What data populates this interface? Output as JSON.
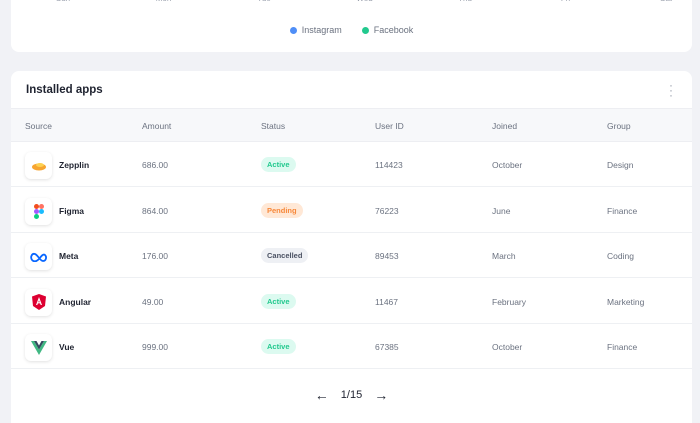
{
  "chart": {
    "days": [
      "Sun",
      "Mon",
      "Tue",
      "Wed",
      "Thu",
      "Fri",
      "Sat"
    ],
    "legend": [
      {
        "label": "Instagram",
        "color": "#4f8ef7"
      },
      {
        "label": "Facebook",
        "color": "#22c98e"
      }
    ]
  },
  "table": {
    "title": "Installed apps",
    "columns": [
      "Source",
      "Amount",
      "Status",
      "User ID",
      "Joined",
      "Group"
    ],
    "rows": [
      {
        "source": "Zepplin",
        "icon": "zeplin-icon",
        "amount": "686.00",
        "status": "Active",
        "user_id": "114423",
        "joined": "October",
        "group": "Design"
      },
      {
        "source": "Figma",
        "icon": "figma-icon",
        "amount": "864.00",
        "status": "Pending",
        "user_id": "76223",
        "joined": "June",
        "group": "Finance"
      },
      {
        "source": "Meta",
        "icon": "meta-icon",
        "amount": "176.00",
        "status": "Cancelled",
        "user_id": "89453",
        "joined": "March",
        "group": "Coding"
      },
      {
        "source": "Angular",
        "icon": "angular-icon",
        "amount": "49.00",
        "status": "Active",
        "user_id": "11467",
        "joined": "February",
        "group": "Marketing"
      },
      {
        "source": "Vue",
        "icon": "vue-icon",
        "amount": "999.00",
        "status": "Active",
        "user_id": "67385",
        "joined": "October",
        "group": "Finance"
      }
    ],
    "status_colors": {
      "Active": {
        "bg": "#dcfaf0",
        "fg": "#22c98e"
      },
      "Pending": {
        "bg": "#ffe8d6",
        "fg": "#f7883a"
      },
      "Cancelled": {
        "bg": "#eef0f4",
        "fg": "#4b5263"
      }
    }
  },
  "pagination": {
    "prev": "←",
    "label": "1/15",
    "next": "→"
  }
}
